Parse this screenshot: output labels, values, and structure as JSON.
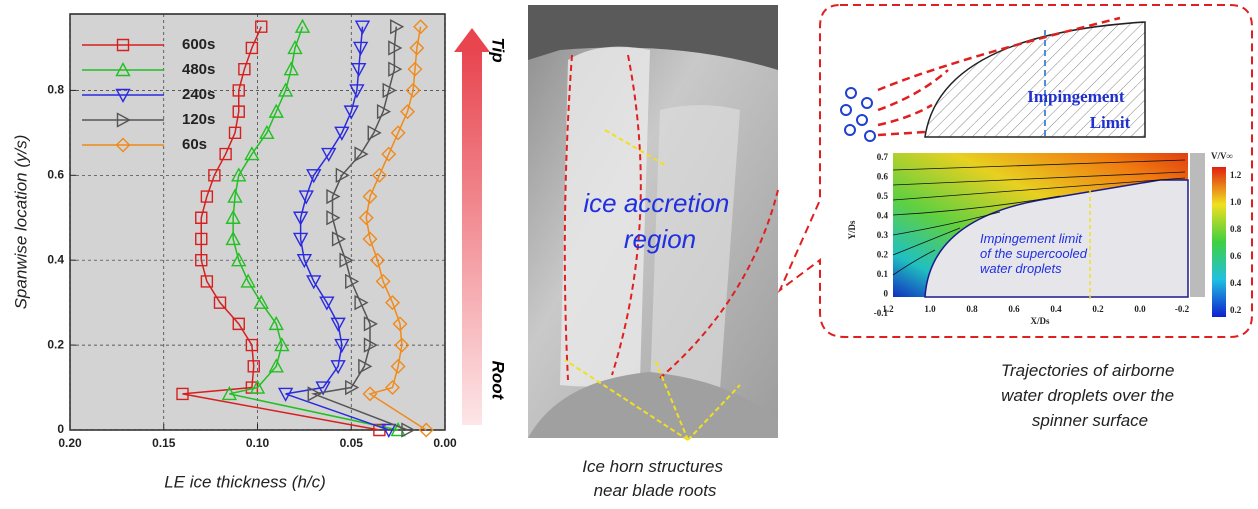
{
  "chart_data": {
    "type": "line",
    "xlabel": "LE ice thickness (h/c)",
    "ylabel": "Spanwise location (y/s)",
    "annotations": {
      "top": "Tip",
      "bottom": "Root"
    },
    "xlim": [
      0.2,
      0.0
    ],
    "xticks": [
      {
        "value": 0.2,
        "label": "0.20"
      },
      {
        "value": 0.15,
        "label": "0.15"
      },
      {
        "value": 0.1,
        "label": "0.10"
      },
      {
        "value": 0.05,
        "label": "0.05"
      },
      {
        "value": 0.0,
        "label": "0.00"
      }
    ],
    "ylim": [
      0,
      0.98
    ],
    "yticks": [
      0,
      0.2,
      0.4,
      0.6,
      0.8
    ],
    "grid": true,
    "legend": "top-left",
    "y": [
      0.0,
      0.085,
      0.1,
      0.15,
      0.2,
      0.25,
      0.3,
      0.35,
      0.4,
      0.45,
      0.5,
      0.55,
      0.6,
      0.65,
      0.7,
      0.75,
      0.8,
      0.85,
      0.9,
      0.95
    ],
    "series": [
      {
        "name": "600s",
        "color": "#d62020",
        "marker": "square",
        "values": [
          0.035,
          0.14,
          0.103,
          0.102,
          0.103,
          0.11,
          0.12,
          0.127,
          0.13,
          0.13,
          0.13,
          0.127,
          0.123,
          0.117,
          0.112,
          0.11,
          0.11,
          0.107,
          0.103,
          0.098
        ]
      },
      {
        "name": "480s",
        "color": "#22c022",
        "marker": "triangle-up",
        "values": [
          0.025,
          0.115,
          0.1,
          0.09,
          0.087,
          0.09,
          0.098,
          0.105,
          0.11,
          0.113,
          0.113,
          0.112,
          0.11,
          0.103,
          0.095,
          0.09,
          0.085,
          0.082,
          0.08,
          0.076
        ]
      },
      {
        "name": "240s",
        "color": "#2a2ae0",
        "marker": "triangle-down",
        "values": [
          0.03,
          0.085,
          0.065,
          0.057,
          0.055,
          0.057,
          0.063,
          0.07,
          0.075,
          0.077,
          0.077,
          0.074,
          0.07,
          0.062,
          0.055,
          0.05,
          0.047,
          0.046,
          0.045,
          0.044
        ]
      },
      {
        "name": "120s",
        "color": "#555555",
        "marker": "triangle-right",
        "values": [
          0.02,
          0.07,
          0.05,
          0.043,
          0.04,
          0.04,
          0.045,
          0.05,
          0.053,
          0.057,
          0.06,
          0.06,
          0.055,
          0.045,
          0.038,
          0.033,
          0.03,
          0.027,
          0.027,
          0.026
        ]
      },
      {
        "name": "60s",
        "color": "#f08a1a",
        "marker": "diamond",
        "values": [
          0.01,
          0.04,
          0.028,
          0.025,
          0.023,
          0.024,
          0.028,
          0.033,
          0.036,
          0.04,
          0.042,
          0.04,
          0.035,
          0.03,
          0.025,
          0.02,
          0.017,
          0.016,
          0.015,
          0.013
        ]
      }
    ]
  },
  "photo": {
    "region_label": [
      "ice accretion",
      "region"
    ],
    "caption": [
      "Ice horn structures",
      "near blade roots"
    ]
  },
  "diagram": {
    "limit_label": [
      "Impingement",
      "Limit"
    ],
    "inset_label": [
      "Impingement limit",
      "of the supercooled",
      "water droplets"
    ],
    "inset_ylabel": "Y/Ds",
    "inset_xlabel": "X/Ds",
    "inset_yticks": [
      "0.7",
      "0.6",
      "0.5",
      "0.4",
      "0.3",
      "0.2",
      "0.1",
      "0",
      "-0.1"
    ],
    "inset_xticks": [
      "1.2",
      "1.0",
      "0.8",
      "0.6",
      "0.4",
      "0.2",
      "0.0",
      "-0.2"
    ],
    "colorbar_title": "V/V∞",
    "colorbar_ticks": [
      "1.2",
      "1.0",
      "0.8",
      "0.6",
      "0.4",
      "0.2"
    ],
    "caption": [
      "Trajectories of airborne",
      "water droplets over the",
      "spinner surface"
    ]
  }
}
